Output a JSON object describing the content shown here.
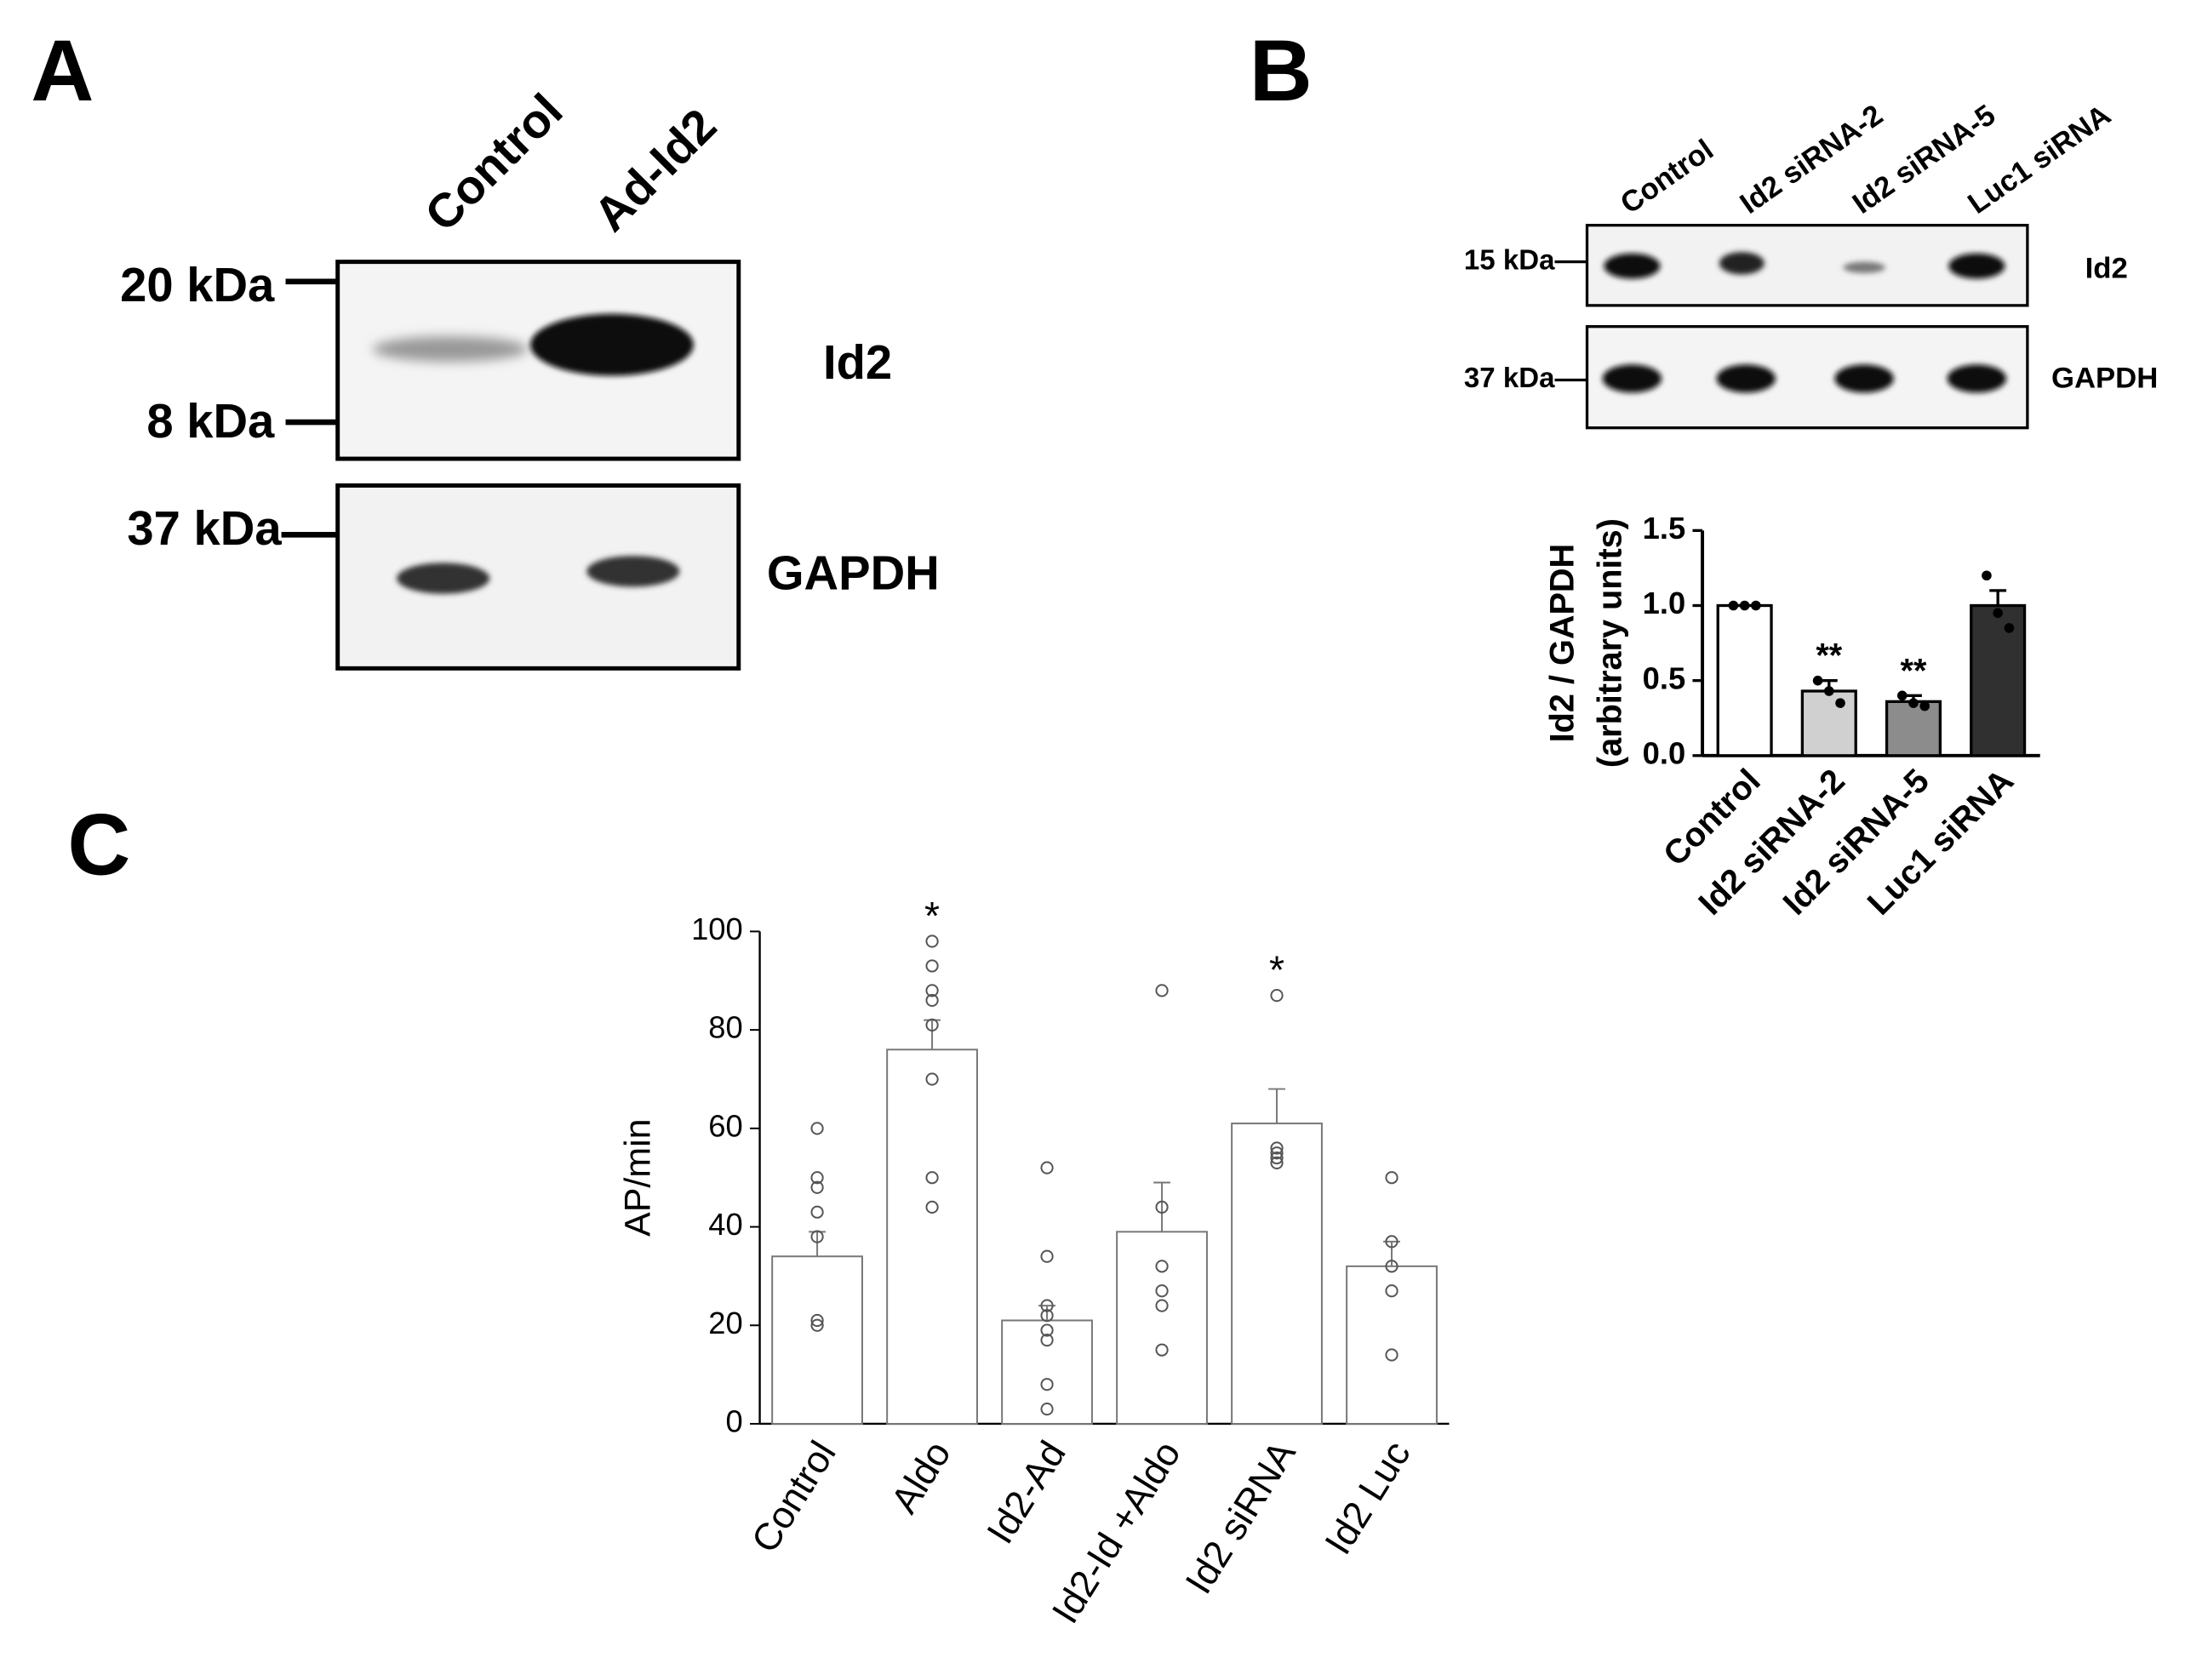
{
  "panel_labels": [
    "A",
    "B",
    "C"
  ],
  "blot_a": {
    "lanes": [
      "Control",
      "Ad-Id2"
    ],
    "markers": [
      "20 kDa",
      "8 kDa",
      "37 kDa"
    ],
    "proteins": [
      "Id2",
      "GAPDH"
    ]
  },
  "blot_b": {
    "lanes": [
      "Control",
      "Id2 siRNA-2",
      "Id2 siRNA-5",
      "Luc1 siRNA"
    ],
    "markers": [
      "15 kDa",
      "37 kDa"
    ],
    "proteins": [
      "Id2",
      "GAPDH"
    ]
  },
  "chart_data": [
    {
      "type": "bar",
      "y_label": [
        "Id2 / GAPDH",
        "(arbitrary units)"
      ],
      "categories": [
        "Control",
        "Id2 siRNA-2",
        "Id2 siRNA-5",
        "Luc1 siRNA"
      ],
      "values": [
        1.0,
        0.43,
        0.36,
        1.0
      ],
      "errors": [
        0,
        0.07,
        0.04,
        0.1
      ],
      "colors": [
        "#ffffff",
        "#d0d0d0",
        "#8c8c8c",
        "#303030"
      ],
      "edge_color": "#000000",
      "points": [
        [
          1.0,
          1.0,
          1.0
        ],
        [
          0.5,
          0.43,
          0.35
        ],
        [
          0.4,
          0.35,
          0.33
        ],
        [
          1.2,
          0.95,
          0.85
        ]
      ],
      "point_style": "filled",
      "annotations": [
        null,
        "**",
        "**",
        null
      ],
      "ylim": [
        0,
        1.5
      ],
      "yticks": [
        {
          "value": 0,
          "label": "0.0"
        },
        {
          "value": 0.5,
          "label": "0.5"
        },
        {
          "value": 1,
          "label": "1.0"
        },
        {
          "value": 1.5,
          "label": "1.5"
        }
      ]
    },
    {
      "type": "bar",
      "y_label": [
        "AP/min"
      ],
      "categories": [
        "Control",
        "Aldo",
        "Id2-Ad",
        "Id2-Id +Aldo",
        "Id2 siRNA",
        "Id2 Luc"
      ],
      "values": [
        34,
        76,
        21,
        39,
        61,
        32
      ],
      "errors": [
        5,
        6,
        3,
        10,
        7,
        5
      ],
      "colors": [
        "#ffffff",
        "#ffffff",
        "#ffffff",
        "#ffffff",
        "#ffffff",
        "#ffffff"
      ],
      "edge_color": "#777777",
      "points": [
        [
          60,
          50,
          48,
          43,
          38,
          21,
          20
        ],
        [
          98,
          93,
          88,
          86,
          81,
          70,
          50,
          44
        ],
        [
          52,
          34,
          24,
          22,
          19,
          17,
          8,
          3
        ],
        [
          88,
          44,
          32,
          27,
          24,
          15
        ],
        [
          87,
          56,
          55,
          54,
          53
        ],
        [
          50,
          37,
          32,
          27,
          14
        ]
      ],
      "point_style": "open",
      "annotations": [
        null,
        "*",
        null,
        null,
        "*",
        null
      ],
      "ylim": [
        0,
        100
      ],
      "yticks": [
        0,
        20,
        40,
        60,
        80,
        100
      ]
    }
  ]
}
